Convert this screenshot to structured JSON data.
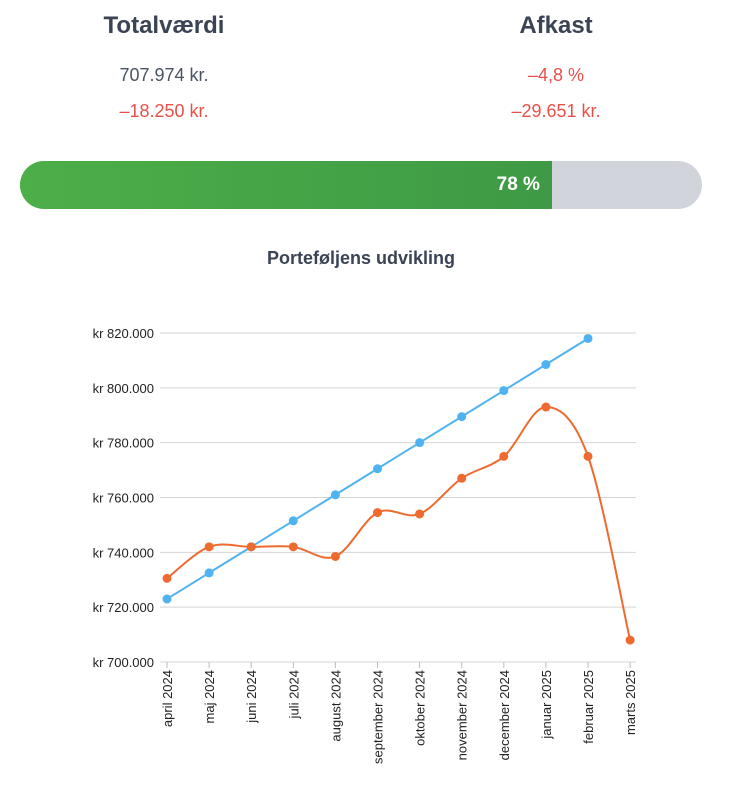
{
  "summary": {
    "total": {
      "title": "Totalværdi",
      "value": "707.974 kr.",
      "change": "–18.250 kr."
    },
    "return": {
      "title": "Afkast",
      "percent": "–4,8 %",
      "amount": "–29.651 kr."
    }
  },
  "progress": {
    "value": 78,
    "label": "78 %"
  },
  "colors": {
    "green": "#4caf48",
    "track": "#d1d5db",
    "blue": "#4fb3f2",
    "orange": "#ee6a2e",
    "negative": "#e8504a"
  },
  "chart_data": {
    "type": "line",
    "title": "Porteføljens udvikling",
    "categories": [
      "april 2024",
      "maj 2024",
      "juni 2024",
      "juli 2024",
      "august 2024",
      "september 2024",
      "oktober 2024",
      "november 2024",
      "december 2024",
      "januar 2025",
      "februar 2025",
      "marts 2025"
    ],
    "yticks": [
      "kr 700.000",
      "kr 720.000",
      "kr 740.000",
      "kr 760.000",
      "kr 780.000",
      "kr 800.000",
      "kr 820.000"
    ],
    "ylim": [
      700000,
      820000
    ],
    "grid": true,
    "series": [
      {
        "color": "#4fb3f2",
        "values": [
          723000,
          732500,
          742000,
          751500,
          761000,
          770500,
          780000,
          789500,
          799000,
          808500,
          818000,
          null
        ]
      },
      {
        "color": "#ee6a2e",
        "values": [
          730500,
          742000,
          742000,
          742000,
          738500,
          754500,
          754000,
          767000,
          775000,
          793000,
          775000,
          708000
        ]
      }
    ]
  }
}
